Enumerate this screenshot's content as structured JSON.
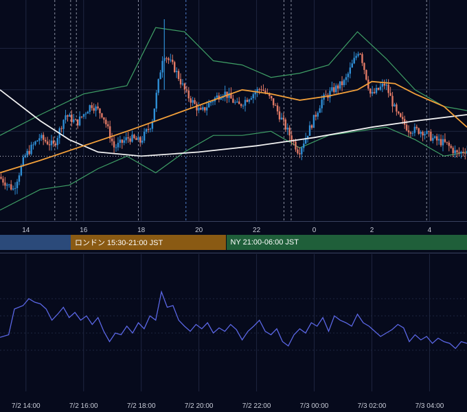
{
  "chart_data": [
    {
      "type": "candlestick",
      "x_unit": "hour (JST, day 7/2 → 7/3)",
      "x_tick_labels": [
        "14",
        "16",
        "18",
        "20",
        "22",
        "0",
        "2",
        "4"
      ],
      "x_tick_hours": [
        14,
        16,
        18,
        20,
        22,
        24,
        26,
        28
      ],
      "x_range_hours": [
        13.1,
        29.3
      ],
      "y_range": [
        0,
        100
      ],
      "grid": true,
      "price_path": [
        [
          13.1,
          18
        ],
        [
          13.6,
          12
        ],
        [
          14.0,
          28
        ],
        [
          14.5,
          37
        ],
        [
          15.0,
          33
        ],
        [
          15.4,
          48
        ],
        [
          15.8,
          44
        ],
        [
          16.3,
          53
        ],
        [
          16.7,
          48
        ],
        [
          17.1,
          32
        ],
        [
          17.6,
          37
        ],
        [
          18.0,
          35
        ],
        [
          18.4,
          44
        ],
        [
          18.8,
          78
        ],
        [
          19.2,
          70
        ],
        [
          19.6,
          58
        ],
        [
          20.1,
          49
        ],
        [
          20.5,
          55
        ],
        [
          20.9,
          59
        ],
        [
          21.4,
          52
        ],
        [
          21.8,
          57
        ],
        [
          22.2,
          61
        ],
        [
          22.6,
          54
        ],
        [
          23.0,
          43
        ],
        [
          23.5,
          30
        ],
        [
          23.9,
          42
        ],
        [
          24.3,
          55
        ],
        [
          24.7,
          60
        ],
        [
          25.1,
          64
        ],
        [
          25.6,
          80
        ],
        [
          26.0,
          57
        ],
        [
          26.5,
          63
        ],
        [
          26.9,
          48
        ],
        [
          27.3,
          41
        ],
        [
          27.8,
          40
        ],
        [
          28.2,
          36
        ],
        [
          28.6,
          34
        ],
        [
          29.0,
          29
        ],
        [
          29.3,
          31
        ]
      ],
      "sma_orange": [
        [
          13.1,
          20
        ],
        [
          14.5,
          26
        ],
        [
          16.0,
          33
        ],
        [
          17.5,
          40
        ],
        [
          18.5,
          45
        ],
        [
          19.5,
          50
        ],
        [
          20.5,
          55
        ],
        [
          21.5,
          60
        ],
        [
          22.5,
          58
        ],
        [
          23.5,
          55
        ],
        [
          24.5,
          57
        ],
        [
          25.5,
          60
        ],
        [
          26.0,
          64
        ],
        [
          26.8,
          63
        ],
        [
          27.5,
          58
        ],
        [
          28.5,
          52
        ],
        [
          29.3,
          42
        ]
      ],
      "sma_white": [
        [
          13.1,
          60
        ],
        [
          14.5,
          45
        ],
        [
          15.5,
          36
        ],
        [
          16.5,
          30
        ],
        [
          18.0,
          28
        ],
        [
          20.0,
          30
        ],
        [
          22.0,
          33
        ],
        [
          24.0,
          37
        ],
        [
          26.0,
          42
        ],
        [
          27.5,
          45
        ],
        [
          29.3,
          48
        ]
      ],
      "bollinger_upper": [
        [
          13.1,
          38
        ],
        [
          14.5,
          48
        ],
        [
          16.0,
          58
        ],
        [
          17.5,
          62
        ],
        [
          18.5,
          90
        ],
        [
          19.5,
          88
        ],
        [
          20.5,
          74
        ],
        [
          21.5,
          72
        ],
        [
          22.5,
          66
        ],
        [
          23.5,
          68
        ],
        [
          24.5,
          72
        ],
        [
          25.5,
          88
        ],
        [
          26.5,
          75
        ],
        [
          27.5,
          60
        ],
        [
          28.5,
          52
        ],
        [
          29.3,
          50
        ]
      ],
      "bollinger_lower": [
        [
          13.1,
          2
        ],
        [
          14.5,
          12
        ],
        [
          15.5,
          14
        ],
        [
          16.5,
          22
        ],
        [
          17.5,
          28
        ],
        [
          18.5,
          20
        ],
        [
          19.5,
          30
        ],
        [
          20.5,
          38
        ],
        [
          21.5,
          38
        ],
        [
          22.5,
          40
        ],
        [
          23.5,
          32
        ],
        [
          24.5,
          38
        ],
        [
          25.5,
          40
        ],
        [
          26.5,
          42
        ],
        [
          27.5,
          36
        ],
        [
          28.5,
          28
        ],
        [
          29.3,
          30
        ]
      ],
      "current_level": 28,
      "vertical_markers": [
        {
          "h": 15.0,
          "style": "dashed"
        },
        {
          "h": 15.55,
          "style": "dashed"
        },
        {
          "h": 15.75,
          "style": "dashed"
        },
        {
          "h": 17.9,
          "style": "dashed"
        },
        {
          "h": 19.55,
          "style": "dashed-blue"
        },
        {
          "h": 22.95,
          "style": "dashed"
        },
        {
          "h": 23.2,
          "style": "dashed"
        },
        {
          "h": 27.9,
          "style": "dashed"
        }
      ]
    },
    {
      "type": "line",
      "x_tick_labels": [
        "7/2 14:00",
        "7/2 16:00",
        "7/2 18:00",
        "7/2 20:00",
        "7/2 22:00",
        "7/3 00:00",
        "7/3 02:00",
        "7/3 04:00"
      ],
      "x_tick_hours": [
        14,
        16,
        18,
        20,
        22,
        24,
        26,
        28
      ],
      "x_range_hours": [
        13.1,
        29.3
      ],
      "y_range": [
        0,
        100
      ],
      "grid": true,
      "values": [
        [
          13.1,
          35
        ],
        [
          13.4,
          38
        ],
        [
          13.6,
          68
        ],
        [
          13.9,
          72
        ],
        [
          14.1,
          80
        ],
        [
          14.3,
          76
        ],
        [
          14.5,
          74
        ],
        [
          14.7,
          68
        ],
        [
          14.9,
          55
        ],
        [
          15.1,
          62
        ],
        [
          15.3,
          70
        ],
        [
          15.5,
          58
        ],
        [
          15.7,
          64
        ],
        [
          15.9,
          55
        ],
        [
          16.1,
          60
        ],
        [
          16.3,
          50
        ],
        [
          16.5,
          58
        ],
        [
          16.7,
          42
        ],
        [
          16.9,
          30
        ],
        [
          17.1,
          40
        ],
        [
          17.3,
          38
        ],
        [
          17.5,
          48
        ],
        [
          17.7,
          40
        ],
        [
          17.9,
          52
        ],
        [
          18.1,
          45
        ],
        [
          18.3,
          60
        ],
        [
          18.5,
          55
        ],
        [
          18.7,
          88
        ],
        [
          18.9,
          70
        ],
        [
          19.1,
          72
        ],
        [
          19.3,
          55
        ],
        [
          19.5,
          48
        ],
        [
          19.7,
          42
        ],
        [
          19.9,
          50
        ],
        [
          20.1,
          45
        ],
        [
          20.3,
          52
        ],
        [
          20.5,
          40
        ],
        [
          20.7,
          46
        ],
        [
          20.9,
          42
        ],
        [
          21.1,
          50
        ],
        [
          21.3,
          44
        ],
        [
          21.5,
          32
        ],
        [
          21.7,
          42
        ],
        [
          21.9,
          48
        ],
        [
          22.1,
          55
        ],
        [
          22.3,
          42
        ],
        [
          22.5,
          38
        ],
        [
          22.7,
          45
        ],
        [
          22.9,
          30
        ],
        [
          23.1,
          25
        ],
        [
          23.3,
          38
        ],
        [
          23.5,
          45
        ],
        [
          23.7,
          40
        ],
        [
          23.9,
          52
        ],
        [
          24.1,
          48
        ],
        [
          24.3,
          58
        ],
        [
          24.5,
          42
        ],
        [
          24.7,
          60
        ],
        [
          24.9,
          55
        ],
        [
          25.1,
          52
        ],
        [
          25.3,
          48
        ],
        [
          25.5,
          62
        ],
        [
          25.7,
          52
        ],
        [
          25.9,
          48
        ],
        [
          26.1,
          42
        ],
        [
          26.3,
          36
        ],
        [
          26.5,
          40
        ],
        [
          26.7,
          44
        ],
        [
          26.9,
          50
        ],
        [
          27.1,
          46
        ],
        [
          27.3,
          30
        ],
        [
          27.5,
          38
        ],
        [
          27.7,
          32
        ],
        [
          27.9,
          36
        ],
        [
          28.1,
          28
        ],
        [
          28.3,
          34
        ],
        [
          28.5,
          30
        ],
        [
          28.7,
          28
        ],
        [
          28.9,
          22
        ],
        [
          29.1,
          30
        ],
        [
          29.3,
          28
        ]
      ]
    }
  ],
  "sessions": [
    {
      "label": "",
      "color": "#2b4a7a",
      "start_h": 13.1,
      "end_h": 15.55
    },
    {
      "label": "ロンドン 15:30-21:00 JST",
      "color": "#8a5a13",
      "start_h": 15.55,
      "end_h": 20.95
    },
    {
      "label": "NY 21:00-06:00 JST",
      "color": "#1f5f3a",
      "start_h": 20.95,
      "end_h": 29.3
    }
  ],
  "colors": {
    "background": "#060a1c",
    "grid": "#1f2640",
    "candle_up": "#2f8fd6",
    "candle_down": "#e27a66",
    "sma_orange": "#f3a03a",
    "sma_white": "#f2f2f2",
    "bollinger": "#3fa066",
    "oscillator": "#5b67e6",
    "marker": "#8a8fa0",
    "marker_blue": "#4f7ec9",
    "current_level": "#c9cdd8"
  }
}
